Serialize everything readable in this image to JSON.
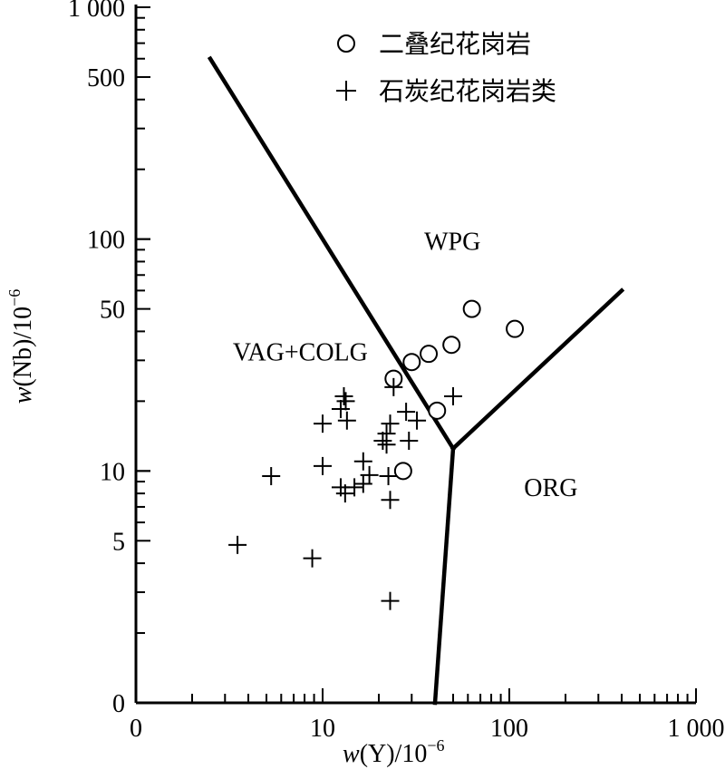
{
  "chart_data": {
    "type": "scatter",
    "x_scale": "log",
    "y_scale": "log",
    "xlim": [
      1,
      1000
    ],
    "ylim": [
      1,
      1000
    ],
    "xlabel": {
      "prefix": "w",
      "main": "(Y)/10",
      "sup": "−6"
    },
    "ylabel": {
      "prefix": "w",
      "main": "(Nb)/10",
      "sup": "−6"
    },
    "x_ticks": [
      {
        "value": 1,
        "label": "0"
      },
      {
        "value": 10,
        "label": "10"
      },
      {
        "value": 100,
        "label": "100"
      },
      {
        "value": 1000,
        "label": "1 000"
      }
    ],
    "y_ticks": [
      {
        "value": 1,
        "label": "0"
      },
      {
        "value": 5,
        "label": "5"
      },
      {
        "value": 10,
        "label": "10"
      },
      {
        "value": 50,
        "label": "50"
      },
      {
        "value": 100,
        "label": "100"
      },
      {
        "value": 500,
        "label": "500"
      },
      {
        "value": 1000,
        "label": "1 000"
      }
    ],
    "regions": [
      {
        "label": "WPG",
        "x": 35,
        "y": 90
      },
      {
        "label": "VAG+COLG",
        "x": 3.3,
        "y": 30
      },
      {
        "label": "ORG",
        "x": 120,
        "y": 7.8
      }
    ],
    "boundary_lines": [
      {
        "points": [
          [
            2.5,
            600
          ],
          [
            50,
            12.5
          ]
        ]
      },
      {
        "points": [
          [
            50,
            12.5
          ],
          [
            400,
            60
          ]
        ]
      },
      {
        "points": [
          [
            50,
            12.5
          ],
          [
            40,
            1
          ]
        ]
      }
    ],
    "series": [
      {
        "name": "二叠纪花岗岩",
        "marker": "circle",
        "points": [
          [
            63,
            50
          ],
          [
            107,
            41
          ],
          [
            49,
            35
          ],
          [
            37,
            32
          ],
          [
            30,
            29.5
          ],
          [
            24,
            25
          ],
          [
            41,
            18.2
          ],
          [
            27,
            10
          ]
        ]
      },
      {
        "name": "石炭纪花岗岩类",
        "marker": "plus",
        "points": [
          [
            24,
            23
          ],
          [
            50,
            21
          ],
          [
            13,
            21
          ],
          [
            13.3,
            20
          ],
          [
            12.5,
            18.5
          ],
          [
            28,
            18
          ],
          [
            32,
            16.5
          ],
          [
            10,
            16
          ],
          [
            13.5,
            16.5
          ],
          [
            23,
            16
          ],
          [
            22,
            14.5
          ],
          [
            21,
            13.5
          ],
          [
            22,
            13
          ],
          [
            29,
            13.5
          ],
          [
            16.5,
            11
          ],
          [
            10,
            10.5
          ],
          [
            17.8,
            9.6
          ],
          [
            5.3,
            9.5
          ],
          [
            22.5,
            9.5
          ],
          [
            14.8,
            8.5
          ],
          [
            16.5,
            8.8
          ],
          [
            12.5,
            8.5
          ],
          [
            13.2,
            8
          ],
          [
            23,
            7.5
          ],
          [
            3.5,
            4.8
          ],
          [
            8.8,
            4.2
          ],
          [
            23,
            2.75
          ]
        ]
      }
    ],
    "legend_position": "top"
  }
}
